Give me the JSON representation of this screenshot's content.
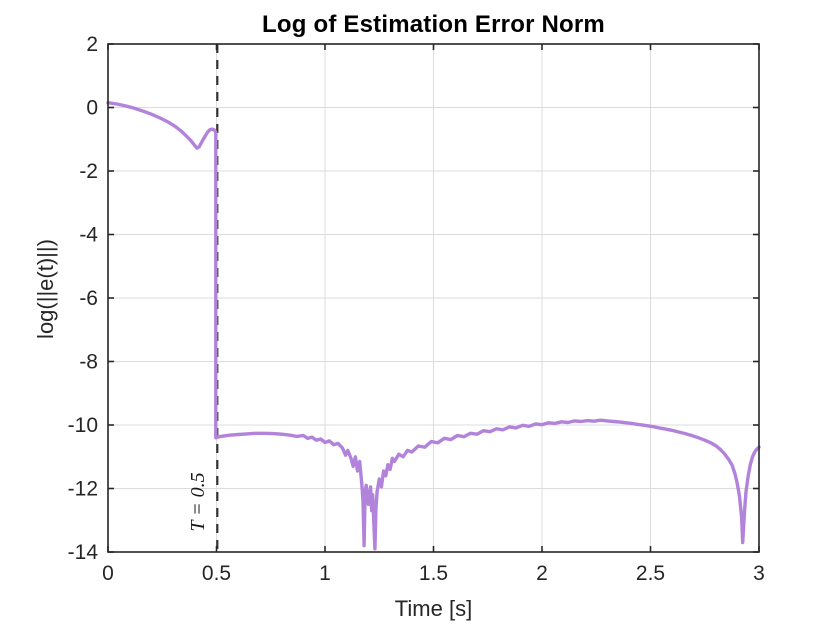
{
  "figure": {
    "title": "Log of Estimation Error Norm",
    "xlabel": "Time [s]",
    "ylabel": "log(||e(t)||)",
    "annotation": "T = 0.5"
  },
  "chart_data": {
    "type": "line",
    "title": "Log of Estimation Error Norm",
    "xlabel": "Time [s]",
    "ylabel": "log(||e(t)||)",
    "xlim": [
      0,
      3
    ],
    "ylim": [
      -14,
      2
    ],
    "xticks": [
      0,
      0.5,
      1,
      1.5,
      2,
      2.5,
      3
    ],
    "xtick_labels": [
      "0",
      "0.5",
      "1",
      "1.5",
      "2",
      "2.5",
      "3"
    ],
    "yticks": [
      2,
      0,
      -2,
      -4,
      -6,
      -8,
      -10,
      -12,
      -14
    ],
    "ytick_labels": [
      "2",
      "0",
      "-2",
      "-4",
      "-6",
      "-8",
      "-10",
      "-12",
      "-14"
    ],
    "grid": true,
    "legend": "none",
    "colors": {
      "line": "#b283da",
      "dashed_line": "#333333",
      "axis": "#262626",
      "grid": "#dcdcdc",
      "tick_text": "#262626",
      "title_text": "#000000"
    },
    "vline": {
      "x": 0.5,
      "label": "T = 0.5",
      "style": "dashed"
    },
    "series": [
      {
        "name": "log of estimation error norm",
        "color": "#b283da",
        "points": [
          [
            0.0,
            0.15
          ],
          [
            0.04,
            0.11
          ],
          [
            0.08,
            0.05
          ],
          [
            0.12,
            -0.02
          ],
          [
            0.16,
            -0.11
          ],
          [
            0.2,
            -0.21
          ],
          [
            0.24,
            -0.33
          ],
          [
            0.28,
            -0.47
          ],
          [
            0.31,
            -0.6
          ],
          [
            0.34,
            -0.76
          ],
          [
            0.36,
            -0.89
          ],
          [
            0.38,
            -1.03
          ],
          [
            0.4,
            -1.2
          ],
          [
            0.41,
            -1.28
          ],
          [
            0.42,
            -1.24
          ],
          [
            0.435,
            -1.05
          ],
          [
            0.45,
            -0.88
          ],
          [
            0.46,
            -0.77
          ],
          [
            0.47,
            -0.7
          ],
          [
            0.48,
            -0.68
          ],
          [
            0.49,
            -0.71
          ],
          [
            0.497,
            -0.78
          ],
          [
            0.497,
            -10.4
          ],
          [
            0.52,
            -10.36
          ],
          [
            0.56,
            -10.32
          ],
          [
            0.6,
            -10.3
          ],
          [
            0.64,
            -10.28
          ],
          [
            0.68,
            -10.26
          ],
          [
            0.72,
            -10.26
          ],
          [
            0.76,
            -10.27
          ],
          [
            0.8,
            -10.29
          ],
          [
            0.84,
            -10.32
          ],
          [
            0.87,
            -10.36
          ],
          [
            0.9,
            -10.33
          ],
          [
            0.92,
            -10.42
          ],
          [
            0.94,
            -10.38
          ],
          [
            0.96,
            -10.48
          ],
          [
            0.98,
            -10.44
          ],
          [
            1.0,
            -10.55
          ],
          [
            1.02,
            -10.5
          ],
          [
            1.04,
            -10.62
          ],
          [
            1.06,
            -10.58
          ],
          [
            1.08,
            -10.72
          ],
          [
            1.095,
            -10.95
          ],
          [
            1.105,
            -10.8
          ],
          [
            1.12,
            -11.05
          ],
          [
            1.13,
            -11.3
          ],
          [
            1.14,
            -11.0
          ],
          [
            1.15,
            -11.45
          ],
          [
            1.16,
            -11.15
          ],
          [
            1.17,
            -11.9
          ],
          [
            1.175,
            -12.4
          ],
          [
            1.18,
            -13.8
          ],
          [
            1.185,
            -12.1
          ],
          [
            1.19,
            -11.9
          ],
          [
            1.2,
            -12.5
          ],
          [
            1.21,
            -11.95
          ],
          [
            1.215,
            -12.7
          ],
          [
            1.22,
            -12.2
          ],
          [
            1.23,
            -13.9
          ],
          [
            1.235,
            -12.6
          ],
          [
            1.24,
            -12.1
          ],
          [
            1.25,
            -11.7
          ],
          [
            1.26,
            -11.95
          ],
          [
            1.27,
            -11.45
          ],
          [
            1.28,
            -11.6
          ],
          [
            1.29,
            -11.25
          ],
          [
            1.3,
            -11.4
          ],
          [
            1.31,
            -11.05
          ],
          [
            1.32,
            -11.15
          ],
          [
            1.34,
            -10.92
          ],
          [
            1.36,
            -11.0
          ],
          [
            1.38,
            -10.8
          ],
          [
            1.4,
            -10.85
          ],
          [
            1.43,
            -10.66
          ],
          [
            1.46,
            -10.7
          ],
          [
            1.49,
            -10.52
          ],
          [
            1.52,
            -10.56
          ],
          [
            1.55,
            -10.42
          ],
          [
            1.58,
            -10.46
          ],
          [
            1.61,
            -10.33
          ],
          [
            1.64,
            -10.37
          ],
          [
            1.67,
            -10.26
          ],
          [
            1.7,
            -10.29
          ],
          [
            1.73,
            -10.18
          ],
          [
            1.76,
            -10.21
          ],
          [
            1.79,
            -10.12
          ],
          [
            1.82,
            -10.15
          ],
          [
            1.85,
            -10.06
          ],
          [
            1.88,
            -10.09
          ],
          [
            1.91,
            -10.01
          ],
          [
            1.94,
            -10.04
          ],
          [
            1.97,
            -9.97
          ],
          [
            2.0,
            -9.99
          ],
          [
            2.03,
            -9.93
          ],
          [
            2.06,
            -9.95
          ],
          [
            2.09,
            -9.9
          ],
          [
            2.12,
            -9.92
          ],
          [
            2.15,
            -9.87
          ],
          [
            2.18,
            -9.89
          ],
          [
            2.21,
            -9.86
          ],
          [
            2.24,
            -9.88
          ],
          [
            2.27,
            -9.85
          ],
          [
            2.3,
            -9.87
          ],
          [
            2.33,
            -9.89
          ],
          [
            2.36,
            -9.91
          ],
          [
            2.39,
            -9.93
          ],
          [
            2.42,
            -9.96
          ],
          [
            2.45,
            -9.99
          ],
          [
            2.48,
            -10.02
          ],
          [
            2.51,
            -10.05
          ],
          [
            2.54,
            -10.09
          ],
          [
            2.57,
            -10.13
          ],
          [
            2.6,
            -10.17
          ],
          [
            2.63,
            -10.22
          ],
          [
            2.66,
            -10.27
          ],
          [
            2.69,
            -10.33
          ],
          [
            2.72,
            -10.4
          ],
          [
            2.75,
            -10.48
          ],
          [
            2.78,
            -10.57
          ],
          [
            2.8,
            -10.65
          ],
          [
            2.82,
            -10.76
          ],
          [
            2.84,
            -10.9
          ],
          [
            2.86,
            -11.08
          ],
          [
            2.875,
            -11.25
          ],
          [
            2.89,
            -11.55
          ],
          [
            2.9,
            -11.85
          ],
          [
            2.91,
            -12.25
          ],
          [
            2.92,
            -12.9
          ],
          [
            2.925,
            -13.7
          ],
          [
            2.93,
            -13.1
          ],
          [
            2.935,
            -12.55
          ],
          [
            2.94,
            -12.1
          ],
          [
            2.95,
            -11.6
          ],
          [
            2.96,
            -11.25
          ],
          [
            2.97,
            -11.0
          ],
          [
            2.98,
            -10.85
          ],
          [
            2.99,
            -10.76
          ],
          [
            3.0,
            -10.7
          ]
        ]
      }
    ]
  }
}
